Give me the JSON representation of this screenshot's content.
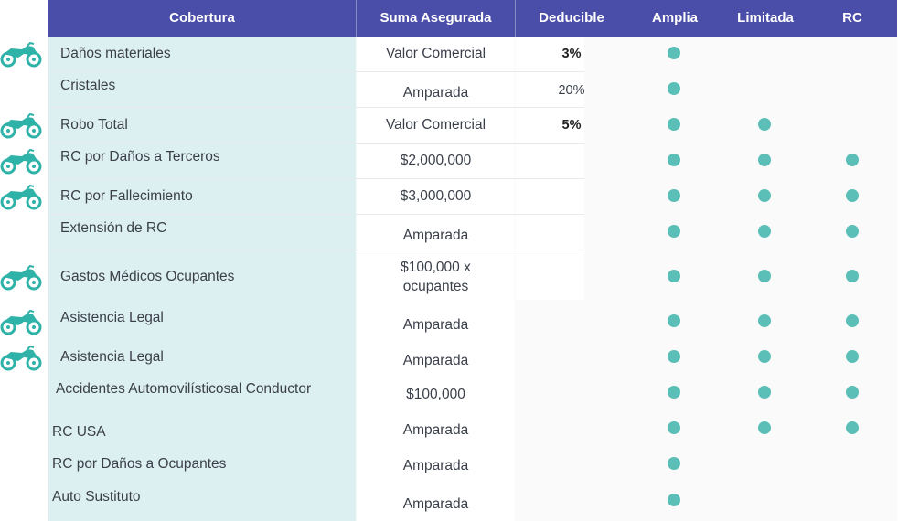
{
  "headers": {
    "cobertura": "Cobertura",
    "suma": "Suma Asegurada",
    "deducible": "Deducible",
    "amplia": "Amplia",
    "limitada": "Limitada",
    "rc": "RC"
  },
  "icon": "motorcycle-icon",
  "colors": {
    "header": "#4b4ea8",
    "dot": "#5bbfb8",
    "coverage_bg": "#ddf0f1"
  },
  "rows": [
    {
      "cobertura": "Daños materiales",
      "suma": "Valor Comercial",
      "deducible": "3%",
      "amplia": true,
      "limitada": false,
      "rc": false,
      "icon": true
    },
    {
      "cobertura": "Cristales",
      "suma": "Amparada",
      "deducible": "20%",
      "amplia": true,
      "limitada": false,
      "rc": false,
      "icon": false
    },
    {
      "cobertura": "Robo Total",
      "suma": "Valor Comercial",
      "deducible": "5%",
      "amplia": true,
      "limitada": true,
      "rc": false,
      "icon": true
    },
    {
      "cobertura": "RC por Daños a Terceros",
      "suma": "$2,000,000",
      "deducible": "",
      "amplia": true,
      "limitada": true,
      "rc": true,
      "icon": true
    },
    {
      "cobertura": "RC por Fallecimiento",
      "suma": "$3,000,000",
      "deducible": "",
      "amplia": true,
      "limitada": true,
      "rc": true,
      "icon": true
    },
    {
      "cobertura": "Extensión de RC",
      "suma": "Amparada",
      "deducible": "",
      "amplia": true,
      "limitada": true,
      "rc": true,
      "icon": false
    },
    {
      "cobertura": "Gastos Médicos Ocupantes",
      "suma": "$100,000 x ocupantes",
      "suma_line1": "$100,000 x",
      "suma_line2": "ocupantes",
      "deducible": "",
      "amplia": true,
      "limitada": true,
      "rc": true,
      "icon": true
    },
    {
      "cobertura": "Asistencia Legal",
      "suma": "Amparada",
      "deducible": "",
      "amplia": true,
      "limitada": true,
      "rc": true,
      "icon": true
    },
    {
      "cobertura": "Asistencia Legal",
      "suma": "Amparada",
      "deducible": "",
      "amplia": true,
      "limitada": true,
      "rc": true,
      "icon": true
    },
    {
      "cobertura": "Accidentes Automovilísticosal Conductor",
      "suma": "$100,000",
      "deducible": "",
      "amplia": true,
      "limitada": true,
      "rc": true,
      "icon": false
    },
    {
      "cobertura": "RC USA",
      "suma": "Amparada",
      "deducible": "",
      "amplia": true,
      "limitada": true,
      "rc": true,
      "icon": false
    },
    {
      "cobertura": "RC por Daños a Ocupantes",
      "suma": "Amparada",
      "deducible": "",
      "amplia": true,
      "limitada": false,
      "rc": false,
      "icon": false
    },
    {
      "cobertura": "Auto Sustituto",
      "suma": "Amparada",
      "deducible": "",
      "amplia": true,
      "limitada": false,
      "rc": false,
      "icon": false
    }
  ]
}
